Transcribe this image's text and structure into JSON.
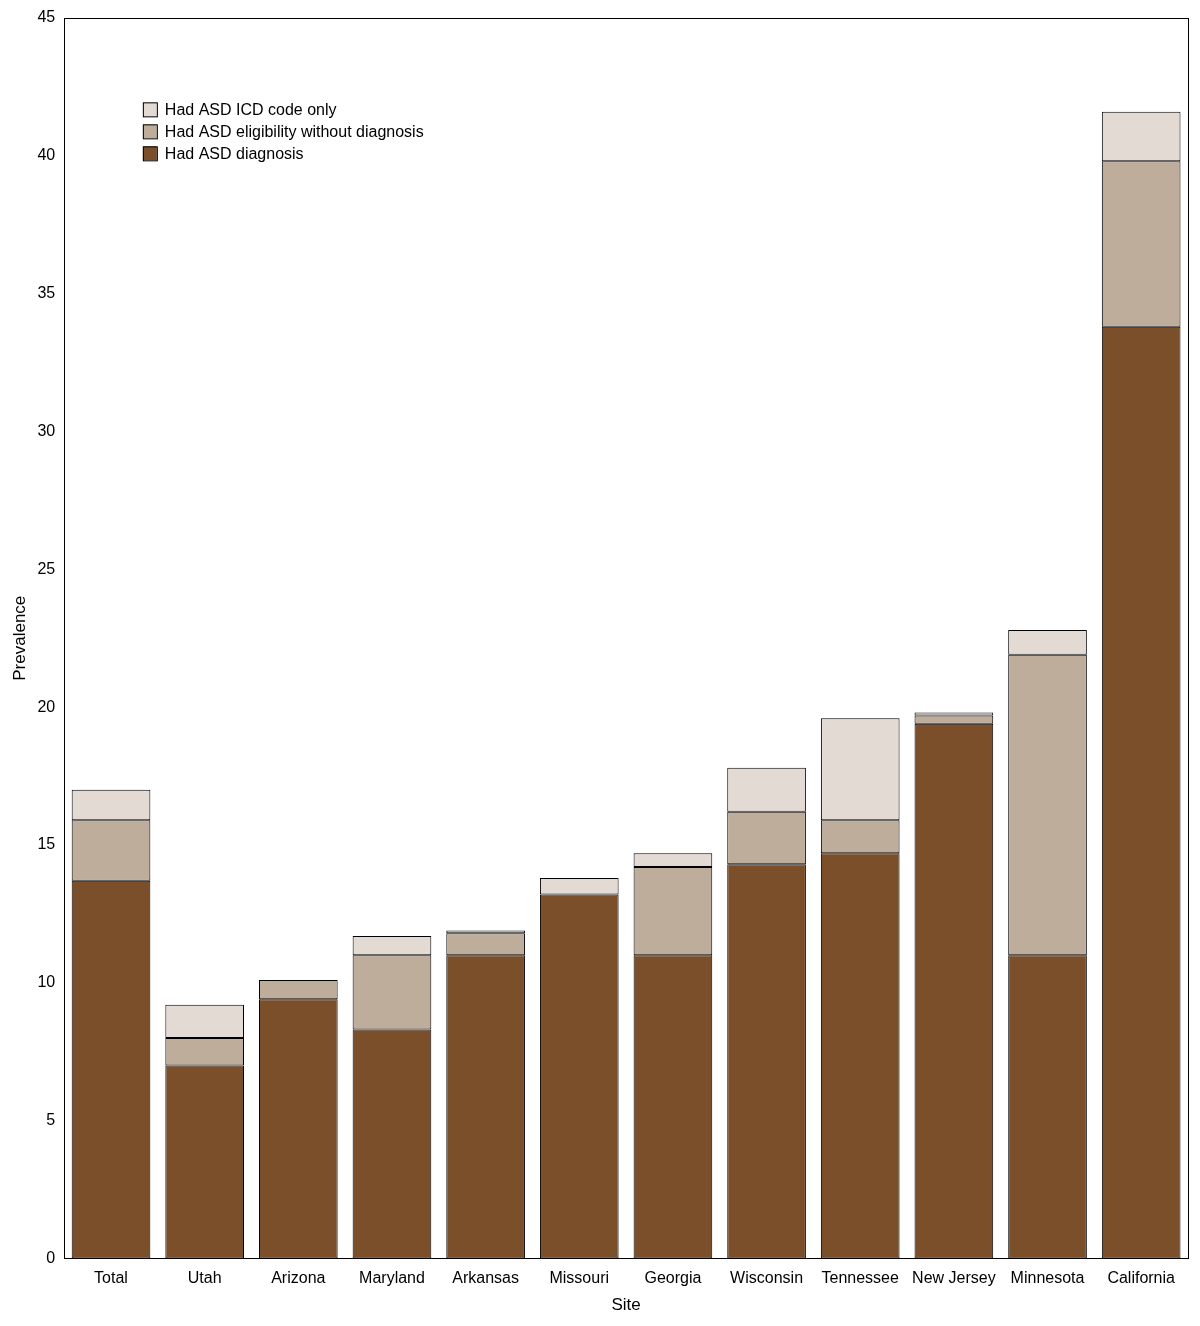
{
  "chart_data": {
    "type": "bar",
    "stacked": true,
    "categories": [
      "Total",
      "Utah",
      "Arizona",
      "Maryland",
      "Arkansas",
      "Missouri",
      "Georgia",
      "Wisconsin",
      "Tennessee",
      "New Jersey",
      "Minnesota",
      "California"
    ],
    "x_label": "Site",
    "y_label": "Prevalence",
    "ylim": [
      0,
      45
    ],
    "yticks": [
      0,
      5,
      10,
      15,
      20,
      25,
      30,
      35,
      40,
      45
    ],
    "grid": false,
    "legend": "upper left",
    "series": [
      {
        "name": "Had ASD diagnosis",
        "color": "#7b4f2a",
        "values": [
          13.7,
          7.0,
          9.4,
          8.3,
          11.0,
          13.2,
          11.0,
          14.3,
          14.7,
          19.4,
          11.0,
          33.8
        ]
      },
      {
        "name": "Had ASD eligibility without diagnosis",
        "color": "#bfad9c",
        "values": [
          2.2,
          1.0,
          0.7,
          2.7,
          0.8,
          0,
          3.2,
          1.9,
          1.2,
          0.3,
          10.9,
          6.0
        ]
      },
      {
        "name": "Had ASD ICD code only",
        "color": "#e4dad4",
        "values": [
          1.1,
          1.2,
          0,
          0.7,
          0.1,
          0.6,
          0.5,
          1.6,
          3.7,
          0.1,
          0.9,
          1.8
        ]
      }
    ]
  }
}
